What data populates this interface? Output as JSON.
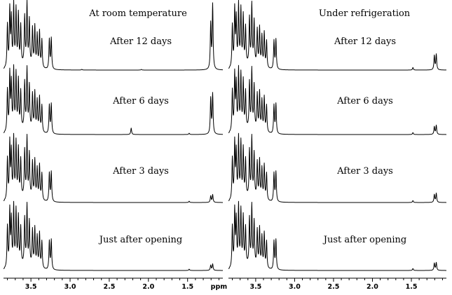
{
  "chart_data": [
    {
      "type": "line",
      "title": "At room temperature",
      "xlabel": "ppm",
      "x_reversed": true,
      "xlim": [
        3.85,
        1.05
      ],
      "x_ticks": [
        "3.5",
        "3.0",
        "2.5",
        "2.0",
        "1.5"
      ],
      "series": [
        {
          "name": "After 12 days",
          "peaks": [
            {
              "ppm": 3.8,
              "h": 0.66
            },
            {
              "ppm": 3.77,
              "h": 0.88
            },
            {
              "ppm": 3.75,
              "h": 0.72
            },
            {
              "ppm": 3.72,
              "h": 0.95
            },
            {
              "ppm": 3.69,
              "h": 0.86
            },
            {
              "ppm": 3.66,
              "h": 0.78
            },
            {
              "ppm": 3.63,
              "h": 0.6
            },
            {
              "ppm": 3.58,
              "h": 0.74
            },
            {
              "ppm": 3.55,
              "h": 0.95
            },
            {
              "ppm": 3.52,
              "h": 0.7
            },
            {
              "ppm": 3.48,
              "h": 0.58
            },
            {
              "ppm": 3.45,
              "h": 0.62
            },
            {
              "ppm": 3.42,
              "h": 0.5
            },
            {
              "ppm": 3.39,
              "h": 0.56
            },
            {
              "ppm": 3.36,
              "h": 0.44
            },
            {
              "ppm": 3.265,
              "h": 0.46
            },
            {
              "ppm": 3.24,
              "h": 0.48
            },
            {
              "ppm": 2.85,
              "h": 0.01
            },
            {
              "ppm": 2.09,
              "h": 0.01
            },
            {
              "ppm": 1.205,
              "h": 0.7
            },
            {
              "ppm": 1.18,
              "h": 1.0
            }
          ]
        },
        {
          "name": "After 6 days",
          "peaks": [
            {
              "ppm": 3.8,
              "h": 0.65
            },
            {
              "ppm": 3.77,
              "h": 0.88
            },
            {
              "ppm": 3.75,
              "h": 0.72
            },
            {
              "ppm": 3.72,
              "h": 0.94
            },
            {
              "ppm": 3.69,
              "h": 0.86
            },
            {
              "ppm": 3.66,
              "h": 0.76
            },
            {
              "ppm": 3.63,
              "h": 0.58
            },
            {
              "ppm": 3.58,
              "h": 0.72
            },
            {
              "ppm": 3.55,
              "h": 0.93
            },
            {
              "ppm": 3.52,
              "h": 0.68
            },
            {
              "ppm": 3.48,
              "h": 0.56
            },
            {
              "ppm": 3.45,
              "h": 0.6
            },
            {
              "ppm": 3.42,
              "h": 0.48
            },
            {
              "ppm": 3.39,
              "h": 0.54
            },
            {
              "ppm": 3.36,
              "h": 0.42
            },
            {
              "ppm": 3.265,
              "h": 0.44
            },
            {
              "ppm": 3.24,
              "h": 0.46
            },
            {
              "ppm": 2.22,
              "h": 0.1
            },
            {
              "ppm": 1.48,
              "h": 0.02
            },
            {
              "ppm": 1.205,
              "h": 0.55
            },
            {
              "ppm": 1.18,
              "h": 0.62
            }
          ]
        },
        {
          "name": "After 3 days",
          "peaks": [
            {
              "ppm": 3.8,
              "h": 0.64
            },
            {
              "ppm": 3.77,
              "h": 0.87
            },
            {
              "ppm": 3.75,
              "h": 0.71
            },
            {
              "ppm": 3.72,
              "h": 0.93
            },
            {
              "ppm": 3.69,
              "h": 0.85
            },
            {
              "ppm": 3.66,
              "h": 0.75
            },
            {
              "ppm": 3.63,
              "h": 0.58
            },
            {
              "ppm": 3.58,
              "h": 0.72
            },
            {
              "ppm": 3.55,
              "h": 0.92
            },
            {
              "ppm": 3.52,
              "h": 0.68
            },
            {
              "ppm": 3.48,
              "h": 0.56
            },
            {
              "ppm": 3.45,
              "h": 0.6
            },
            {
              "ppm": 3.42,
              "h": 0.48
            },
            {
              "ppm": 3.39,
              "h": 0.54
            },
            {
              "ppm": 3.36,
              "h": 0.42
            },
            {
              "ppm": 3.265,
              "h": 0.44
            },
            {
              "ppm": 3.24,
              "h": 0.46
            },
            {
              "ppm": 1.48,
              "h": 0.02
            },
            {
              "ppm": 1.205,
              "h": 0.1
            },
            {
              "ppm": 1.18,
              "h": 0.12
            }
          ]
        },
        {
          "name": "Just after opening",
          "peaks": [
            {
              "ppm": 3.8,
              "h": 0.64
            },
            {
              "ppm": 3.77,
              "h": 0.87
            },
            {
              "ppm": 3.75,
              "h": 0.71
            },
            {
              "ppm": 3.72,
              "h": 0.93
            },
            {
              "ppm": 3.69,
              "h": 0.85
            },
            {
              "ppm": 3.66,
              "h": 0.75
            },
            {
              "ppm": 3.63,
              "h": 0.58
            },
            {
              "ppm": 3.58,
              "h": 0.72
            },
            {
              "ppm": 3.55,
              "h": 0.92
            },
            {
              "ppm": 3.52,
              "h": 0.68
            },
            {
              "ppm": 3.48,
              "h": 0.56
            },
            {
              "ppm": 3.45,
              "h": 0.6
            },
            {
              "ppm": 3.42,
              "h": 0.48
            },
            {
              "ppm": 3.39,
              "h": 0.54
            },
            {
              "ppm": 3.36,
              "h": 0.42
            },
            {
              "ppm": 3.265,
              "h": 0.44
            },
            {
              "ppm": 3.24,
              "h": 0.46
            },
            {
              "ppm": 1.48,
              "h": 0.02
            },
            {
              "ppm": 1.205,
              "h": 0.08
            },
            {
              "ppm": 1.18,
              "h": 0.1
            }
          ]
        }
      ]
    },
    {
      "type": "line",
      "title": "Under refrigeration",
      "xlabel": "",
      "x_reversed": true,
      "xlim": [
        3.85,
        1.05
      ],
      "x_ticks": [
        "3.5",
        "3.0",
        "2.5",
        "2.0",
        "1.5"
      ],
      "series": [
        {
          "name": "After 12 days",
          "peaks": [
            {
              "ppm": 3.8,
              "h": 0.65
            },
            {
              "ppm": 3.77,
              "h": 0.88
            },
            {
              "ppm": 3.75,
              "h": 0.72
            },
            {
              "ppm": 3.72,
              "h": 0.94
            },
            {
              "ppm": 3.69,
              "h": 0.86
            },
            {
              "ppm": 3.66,
              "h": 0.76
            },
            {
              "ppm": 3.63,
              "h": 0.58
            },
            {
              "ppm": 3.58,
              "h": 0.72
            },
            {
              "ppm": 3.55,
              "h": 0.93
            },
            {
              "ppm": 3.52,
              "h": 0.68
            },
            {
              "ppm": 3.48,
              "h": 0.56
            },
            {
              "ppm": 3.45,
              "h": 0.6
            },
            {
              "ppm": 3.42,
              "h": 0.48
            },
            {
              "ppm": 3.39,
              "h": 0.54
            },
            {
              "ppm": 3.36,
              "h": 0.42
            },
            {
              "ppm": 3.265,
              "h": 0.44
            },
            {
              "ppm": 3.24,
              "h": 0.46
            },
            {
              "ppm": 1.48,
              "h": 0.04
            },
            {
              "ppm": 1.205,
              "h": 0.22
            },
            {
              "ppm": 1.18,
              "h": 0.24
            }
          ]
        },
        {
          "name": "After 6 days",
          "peaks": [
            {
              "ppm": 3.8,
              "h": 0.64
            },
            {
              "ppm": 3.77,
              "h": 0.87
            },
            {
              "ppm": 3.75,
              "h": 0.71
            },
            {
              "ppm": 3.72,
              "h": 0.93
            },
            {
              "ppm": 3.69,
              "h": 0.85
            },
            {
              "ppm": 3.66,
              "h": 0.75
            },
            {
              "ppm": 3.63,
              "h": 0.58
            },
            {
              "ppm": 3.58,
              "h": 0.72
            },
            {
              "ppm": 3.55,
              "h": 0.92
            },
            {
              "ppm": 3.52,
              "h": 0.68
            },
            {
              "ppm": 3.48,
              "h": 0.56
            },
            {
              "ppm": 3.45,
              "h": 0.6
            },
            {
              "ppm": 3.42,
              "h": 0.48
            },
            {
              "ppm": 3.39,
              "h": 0.54
            },
            {
              "ppm": 3.36,
              "h": 0.42
            },
            {
              "ppm": 3.265,
              "h": 0.44
            },
            {
              "ppm": 3.24,
              "h": 0.46
            },
            {
              "ppm": 1.48,
              "h": 0.03
            },
            {
              "ppm": 1.205,
              "h": 0.12
            },
            {
              "ppm": 1.18,
              "h": 0.14
            }
          ]
        },
        {
          "name": "After 3 days",
          "peaks": [
            {
              "ppm": 3.8,
              "h": 0.64
            },
            {
              "ppm": 3.77,
              "h": 0.87
            },
            {
              "ppm": 3.75,
              "h": 0.71
            },
            {
              "ppm": 3.72,
              "h": 0.93
            },
            {
              "ppm": 3.69,
              "h": 0.85
            },
            {
              "ppm": 3.66,
              "h": 0.75
            },
            {
              "ppm": 3.63,
              "h": 0.58
            },
            {
              "ppm": 3.58,
              "h": 0.72
            },
            {
              "ppm": 3.55,
              "h": 0.92
            },
            {
              "ppm": 3.52,
              "h": 0.68
            },
            {
              "ppm": 3.48,
              "h": 0.56
            },
            {
              "ppm": 3.45,
              "h": 0.6
            },
            {
              "ppm": 3.42,
              "h": 0.48
            },
            {
              "ppm": 3.39,
              "h": 0.54
            },
            {
              "ppm": 3.36,
              "h": 0.42
            },
            {
              "ppm": 3.265,
              "h": 0.44
            },
            {
              "ppm": 3.24,
              "h": 0.46
            },
            {
              "ppm": 1.48,
              "h": 0.03
            },
            {
              "ppm": 1.205,
              "h": 0.12
            },
            {
              "ppm": 1.18,
              "h": 0.14
            }
          ]
        },
        {
          "name": "Just after opening",
          "peaks": [
            {
              "ppm": 3.8,
              "h": 0.64
            },
            {
              "ppm": 3.77,
              "h": 0.87
            },
            {
              "ppm": 3.75,
              "h": 0.71
            },
            {
              "ppm": 3.72,
              "h": 0.93
            },
            {
              "ppm": 3.69,
              "h": 0.85
            },
            {
              "ppm": 3.66,
              "h": 0.75
            },
            {
              "ppm": 3.63,
              "h": 0.58
            },
            {
              "ppm": 3.58,
              "h": 0.72
            },
            {
              "ppm": 3.55,
              "h": 0.92
            },
            {
              "ppm": 3.52,
              "h": 0.68
            },
            {
              "ppm": 3.48,
              "h": 0.56
            },
            {
              "ppm": 3.45,
              "h": 0.6
            },
            {
              "ppm": 3.42,
              "h": 0.48
            },
            {
              "ppm": 3.39,
              "h": 0.54
            },
            {
              "ppm": 3.36,
              "h": 0.42
            },
            {
              "ppm": 3.265,
              "h": 0.44
            },
            {
              "ppm": 3.24,
              "h": 0.46
            },
            {
              "ppm": 1.48,
              "h": 0.03
            },
            {
              "ppm": 1.205,
              "h": 0.11
            },
            {
              "ppm": 1.18,
              "h": 0.12
            }
          ]
        }
      ]
    }
  ]
}
